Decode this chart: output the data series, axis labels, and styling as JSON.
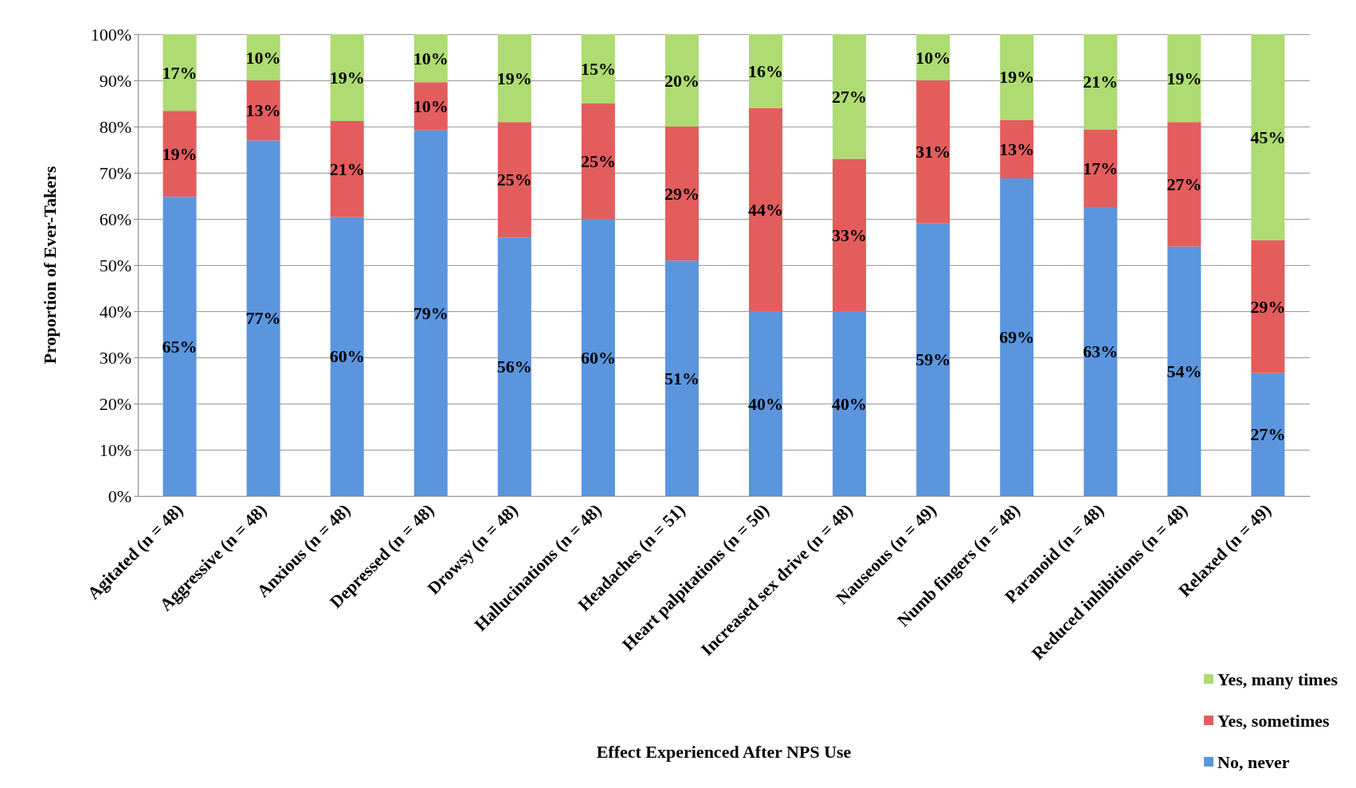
{
  "chart_data": {
    "type": "bar",
    "stacked": true,
    "xlabel": "Effect Experienced After NPS Use",
    "ylabel": "Proportion of Ever-Takers",
    "categories": [
      "Agitated (n = 48)",
      "Aggressive (n = 48)",
      "Anxious (n = 48)",
      "Depressed (n = 48)",
      "Drowsy (n = 48)",
      "Hallucinations (n = 48)",
      "Headaches (n = 51)",
      "Heart palpitations (n = 50)",
      "Increased sex drive (n = 48)",
      "Nauseous (n = 49)",
      "Numb fingers (n = 48)",
      "Paranoid (n = 48)",
      "Reduced inhibitions (n = 48)",
      "Relaxed (n = 49)"
    ],
    "series": [
      {
        "name": "No, never",
        "color": "#5b95de",
        "values": [
          64.8,
          77,
          60.4,
          79.2,
          56,
          60,
          51,
          40,
          40,
          59,
          68.8,
          62.6,
          54,
          26.6
        ],
        "value_labels": [
          "65%",
          "77%",
          "60%",
          "79%",
          "56%",
          "60%",
          "51%",
          "40%",
          "40%",
          "59%",
          "69%",
          "63%",
          "54%",
          "27%"
        ]
      },
      {
        "name": "Yes, sometimes",
        "color": "#e35d5d",
        "values": [
          18.6,
          13,
          20.8,
          10.4,
          25,
          25,
          29,
          44,
          33,
          31,
          12.6,
          16.8,
          27,
          28.8
        ],
        "value_labels": [
          "19%",
          "13%",
          "21%",
          "10%",
          "25%",
          "25%",
          "29%",
          "44%",
          "33%",
          "31%",
          "13%",
          "17%",
          "27%",
          "29%"
        ]
      },
      {
        "name": "Yes, many times",
        "color": "#aedb72",
        "values": [
          16.6,
          10,
          18.8,
          10.4,
          19,
          15,
          20,
          16,
          27,
          10,
          18.6,
          20.6,
          19,
          44.6
        ],
        "value_labels": [
          "17%",
          "10%",
          "19%",
          "10%",
          "19%",
          "15%",
          "20%",
          "16%",
          "27%",
          "10%",
          "19%",
          "21%",
          "19%",
          "45%"
        ]
      }
    ],
    "ylim": [
      0,
      100
    ],
    "yticks": [
      {
        "value": 0,
        "label": "0%"
      },
      {
        "value": 10,
        "label": "10%"
      },
      {
        "value": 20,
        "label": "20%"
      },
      {
        "value": 30,
        "label": "30%"
      },
      {
        "value": 40,
        "label": "40%"
      },
      {
        "value": 50,
        "label": "50%"
      },
      {
        "value": 60,
        "label": "60%"
      },
      {
        "value": 70,
        "label": "70%"
      },
      {
        "value": 80,
        "label": "80%"
      },
      {
        "value": 90,
        "label": "90%"
      },
      {
        "value": 100,
        "label": "100%"
      }
    ],
    "grid": "y",
    "legend": "bottom right"
  }
}
